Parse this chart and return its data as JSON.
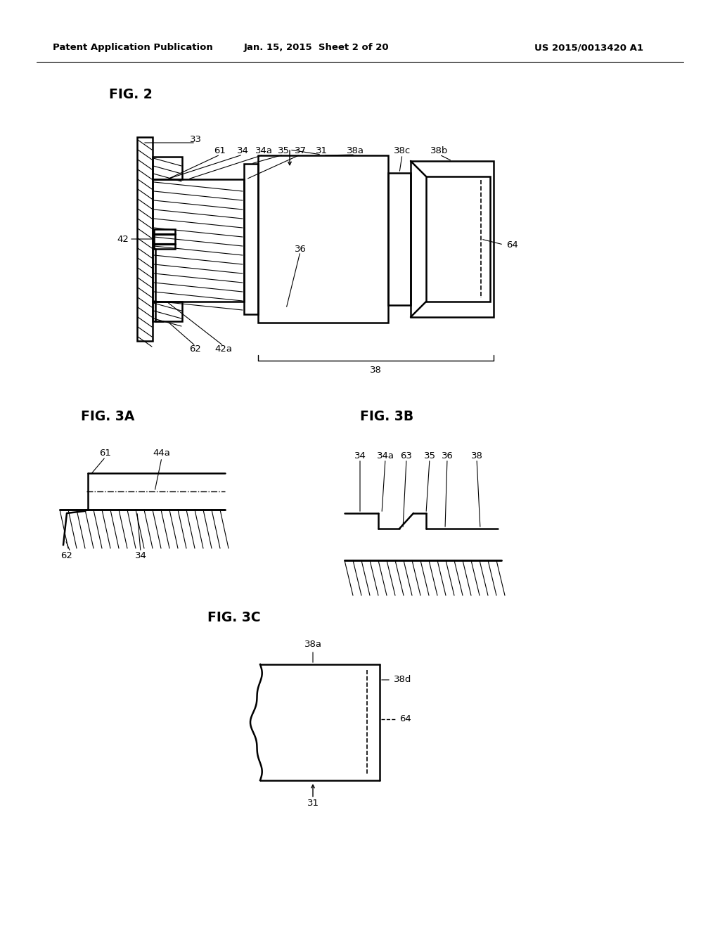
{
  "bg_color": "#ffffff",
  "line_color": "#000000",
  "header_left": "Patent Application Publication",
  "header_center": "Jan. 15, 2015  Sheet 2 of 20",
  "header_right": "US 2015/0013420 A1",
  "fig2_label": "FIG. 2",
  "fig3a_label": "FIG. 3A",
  "fig3b_label": "FIG. 3B",
  "fig3c_label": "FIG. 3C"
}
